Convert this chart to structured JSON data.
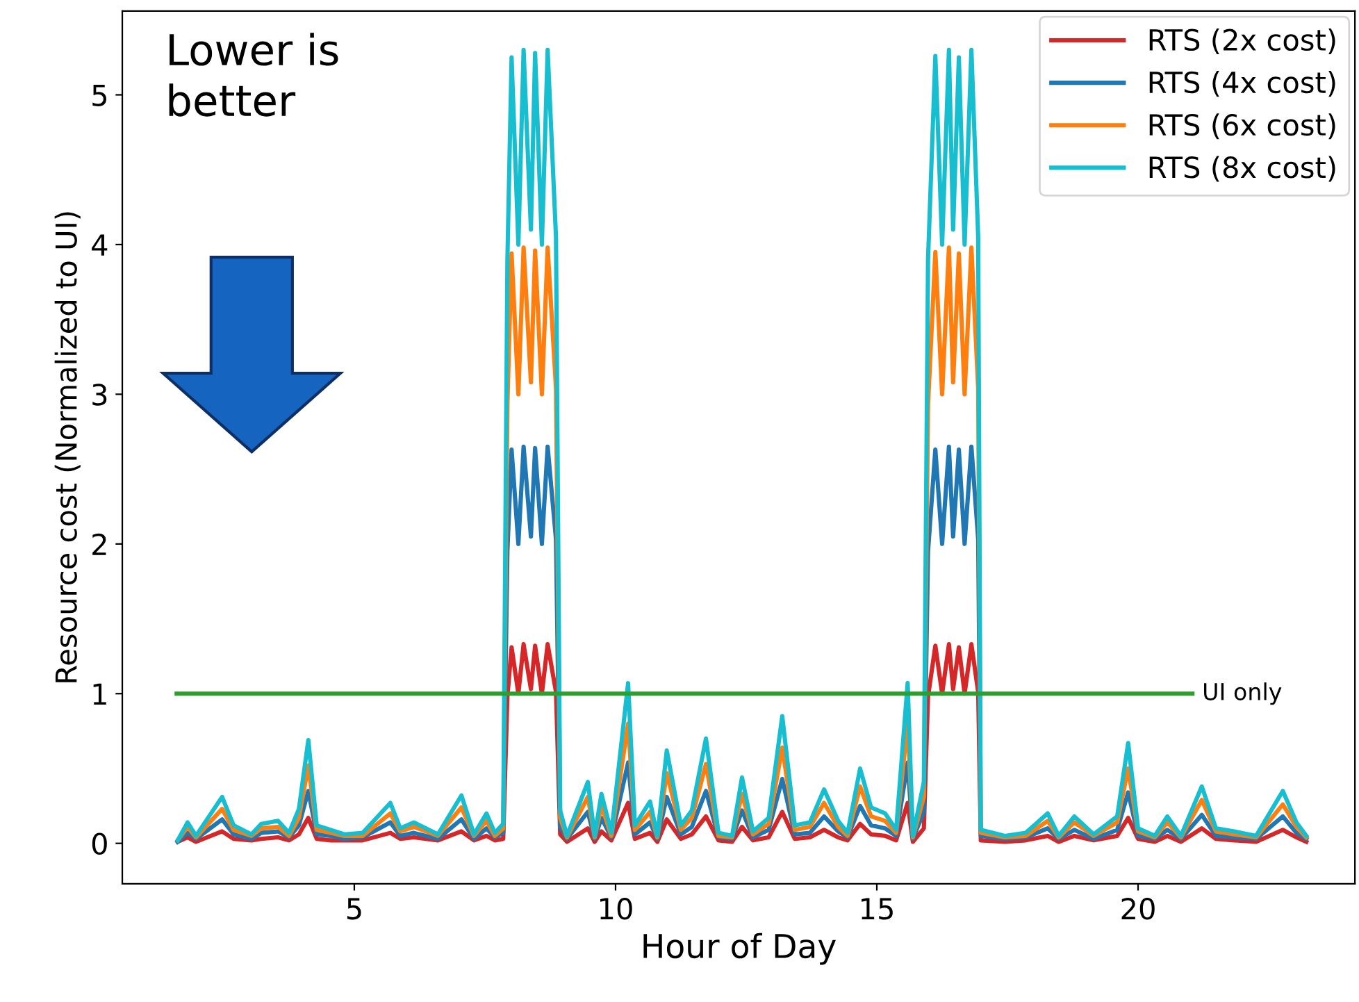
{
  "chart_data": {
    "type": "line",
    "xlabel": "Hour of Day",
    "ylabel": "Resource cost (Normalized to UI)",
    "xlim": [
      0.56,
      24.15
    ],
    "ylim": [
      -0.27,
      5.56
    ],
    "xticks": [
      5,
      10,
      15,
      20
    ],
    "yticks": [
      0,
      1,
      2,
      3,
      4,
      5
    ],
    "grid": false,
    "legend": "top right",
    "marker": "none",
    "line_style": "solid",
    "x": [
      1.62,
      1.81,
      1.97,
      2.47,
      2.69,
      3.03,
      3.22,
      3.54,
      3.75,
      3.94,
      4.12,
      4.28,
      4.55,
      4.81,
      5.16,
      5.69,
      5.88,
      6.14,
      6.6,
      7.05,
      7.29,
      7.53,
      7.69,
      7.85,
      7.93,
      8.01,
      8.14,
      8.24,
      8.38,
      8.46,
      8.59,
      8.7,
      8.86,
      8.94,
      9.07,
      9.47,
      9.6,
      9.73,
      9.92,
      10.24,
      10.37,
      10.66,
      10.8,
      10.98,
      11.25,
      11.46,
      11.73,
      11.97,
      12.23,
      12.42,
      12.63,
      12.93,
      13.19,
      13.43,
      13.72,
      13.99,
      14.26,
      14.44,
      14.68,
      14.89,
      15.16,
      15.37,
      15.59,
      15.69,
      15.9,
      15.98,
      16.12,
      16.25,
      16.38,
      16.46,
      16.57,
      16.68,
      16.81,
      16.94,
      16.99,
      17.45,
      17.85,
      18.27,
      18.48,
      18.78,
      19.15,
      19.6,
      19.81,
      20.0,
      20.32,
      20.56,
      20.82,
      21.22,
      21.49,
      21.84,
      22.26,
      22.77,
      23.03,
      23.22
    ],
    "series": [
      {
        "name": "RTS (2x cost)",
        "color": "#d62728",
        "values": [
          0.01,
          0.04,
          0.01,
          0.08,
          0.03,
          0.02,
          0.03,
          0.04,
          0.02,
          0.06,
          0.17,
          0.03,
          0.02,
          0.02,
          0.02,
          0.07,
          0.03,
          0.04,
          0.02,
          0.08,
          0.02,
          0.05,
          0.02,
          0.03,
          0.98,
          1.31,
          1.0,
          1.33,
          1.03,
          1.32,
          1.0,
          1.33,
          1.01,
          0.06,
          0.01,
          0.1,
          0.01,
          0.08,
          0.02,
          0.27,
          0.03,
          0.07,
          0.01,
          0.16,
          0.03,
          0.06,
          0.18,
          0.02,
          0.01,
          0.11,
          0.02,
          0.04,
          0.21,
          0.03,
          0.04,
          0.09,
          0.04,
          0.02,
          0.13,
          0.06,
          0.05,
          0.02,
          0.27,
          0.01,
          0.1,
          0.98,
          1.32,
          1.0,
          1.33,
          1.03,
          1.31,
          1.0,
          1.33,
          1.01,
          0.02,
          0.01,
          0.02,
          0.05,
          0.01,
          0.05,
          0.02,
          0.05,
          0.17,
          0.03,
          0.01,
          0.05,
          0.01,
          0.1,
          0.03,
          0.02,
          0.01,
          0.09,
          0.04,
          0.01
        ]
      },
      {
        "name": "RTS (4x cost)",
        "color": "#1f77b4",
        "values": [
          0.01,
          0.07,
          0.03,
          0.16,
          0.06,
          0.03,
          0.07,
          0.08,
          0.04,
          0.12,
          0.35,
          0.06,
          0.05,
          0.03,
          0.04,
          0.14,
          0.05,
          0.07,
          0.03,
          0.16,
          0.03,
          0.1,
          0.04,
          0.07,
          1.95,
          2.63,
          2.0,
          2.65,
          2.05,
          2.64,
          2.0,
          2.65,
          2.03,
          0.11,
          0.03,
          0.21,
          0.03,
          0.17,
          0.04,
          0.54,
          0.06,
          0.14,
          0.03,
          0.31,
          0.06,
          0.11,
          0.35,
          0.04,
          0.03,
          0.22,
          0.04,
          0.09,
          0.43,
          0.06,
          0.07,
          0.18,
          0.08,
          0.04,
          0.25,
          0.12,
          0.1,
          0.05,
          0.54,
          0.03,
          0.21,
          1.95,
          2.63,
          2.0,
          2.65,
          2.05,
          2.63,
          2.0,
          2.65,
          2.03,
          0.05,
          0.03,
          0.04,
          0.1,
          0.03,
          0.09,
          0.03,
          0.09,
          0.34,
          0.05,
          0.03,
          0.09,
          0.03,
          0.19,
          0.05,
          0.04,
          0.03,
          0.18,
          0.07,
          0.03
        ]
      },
      {
        "name": "RTS (6x cost)",
        "color": "#ff7f0e",
        "values": [
          0.02,
          0.11,
          0.04,
          0.23,
          0.09,
          0.05,
          0.1,
          0.11,
          0.05,
          0.17,
          0.52,
          0.09,
          0.07,
          0.05,
          0.05,
          0.2,
          0.08,
          0.11,
          0.05,
          0.24,
          0.05,
          0.15,
          0.05,
          0.1,
          2.93,
          3.94,
          3.0,
          3.98,
          3.08,
          3.96,
          3.0,
          3.98,
          3.04,
          0.17,
          0.04,
          0.31,
          0.04,
          0.25,
          0.05,
          0.8,
          0.09,
          0.21,
          0.04,
          0.47,
          0.09,
          0.17,
          0.53,
          0.05,
          0.04,
          0.33,
          0.06,
          0.13,
          0.64,
          0.09,
          0.11,
          0.27,
          0.11,
          0.05,
          0.38,
          0.18,
          0.15,
          0.07,
          0.8,
          0.04,
          0.31,
          2.93,
          3.95,
          3.0,
          3.98,
          3.08,
          3.94,
          3.0,
          3.98,
          3.04,
          0.07,
          0.04,
          0.05,
          0.15,
          0.04,
          0.14,
          0.05,
          0.14,
          0.5,
          0.08,
          0.04,
          0.14,
          0.04,
          0.29,
          0.08,
          0.06,
          0.04,
          0.26,
          0.11,
          0.04
        ]
      },
      {
        "name": "RTS (8x cost)",
        "color": "#17becf",
        "values": [
          0.02,
          0.14,
          0.05,
          0.31,
          0.12,
          0.06,
          0.13,
          0.15,
          0.07,
          0.23,
          0.69,
          0.12,
          0.09,
          0.06,
          0.07,
          0.27,
          0.1,
          0.14,
          0.06,
          0.32,
          0.06,
          0.2,
          0.07,
          0.13,
          3.9,
          5.25,
          4.0,
          5.3,
          4.1,
          5.28,
          4.0,
          5.3,
          4.05,
          0.22,
          0.05,
          0.41,
          0.05,
          0.33,
          0.07,
          1.07,
          0.12,
          0.28,
          0.05,
          0.62,
          0.12,
          0.22,
          0.7,
          0.07,
          0.05,
          0.44,
          0.08,
          0.17,
          0.85,
          0.12,
          0.14,
          0.36,
          0.15,
          0.07,
          0.5,
          0.24,
          0.2,
          0.09,
          1.07,
          0.05,
          0.41,
          3.9,
          5.26,
          4.0,
          5.3,
          4.1,
          5.25,
          4.0,
          5.3,
          4.05,
          0.09,
          0.05,
          0.07,
          0.2,
          0.05,
          0.18,
          0.06,
          0.18,
          0.67,
          0.1,
          0.05,
          0.18,
          0.05,
          0.38,
          0.1,
          0.08,
          0.05,
          0.35,
          0.14,
          0.05
        ]
      },
      {
        "color": "#2ca02c",
        "x": [
          1.6,
          21.04
        ],
        "values": [
          1,
          1
        ]
      }
    ],
    "annotations": [
      {
        "text": "UI only",
        "x": 21.04,
        "y": 1
      },
      "Lower is\nbetter"
    ]
  }
}
